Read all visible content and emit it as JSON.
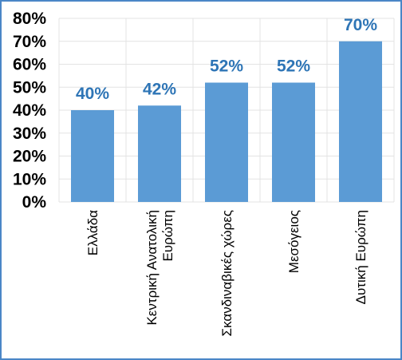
{
  "chart_data": {
    "type": "bar",
    "categories": [
      [
        "Ελλάδα"
      ],
      [
        "Κεντρική Ανατολική",
        "Ευρώπη"
      ],
      [
        "Σκανδιναβικές χώρες"
      ],
      [
        "Μεσόγειος"
      ],
      [
        "Δυτική Ευρώπη"
      ]
    ],
    "values": [
      40,
      42,
      52,
      52,
      70
    ],
    "data_labels": [
      "40%",
      "42%",
      "52%",
      "52%",
      "70%"
    ],
    "y_ticks": [
      "0%",
      "10%",
      "20%",
      "30%",
      "40%",
      "50%",
      "60%",
      "70%",
      "80%"
    ],
    "ylim": [
      0,
      80
    ],
    "grid": true,
    "title": "",
    "xlabel": "",
    "ylabel": "",
    "colors": {
      "bar": "#5b9bd5",
      "data_label": "#2e75b6",
      "grid": "#e3e3e3",
      "frame": "#4a86c7"
    }
  }
}
